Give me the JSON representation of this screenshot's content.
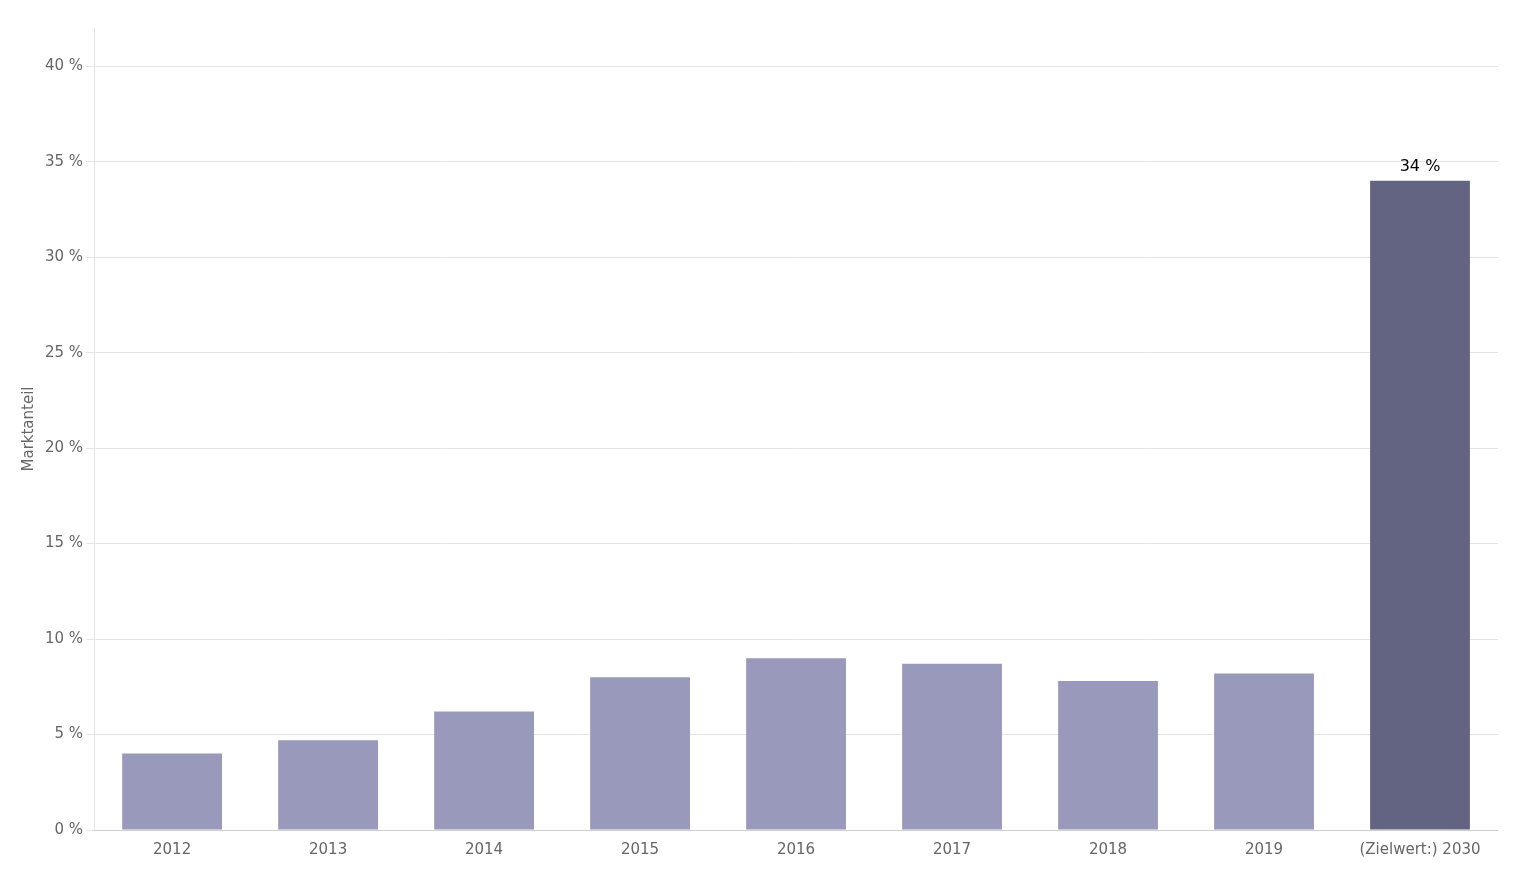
{
  "chart_data": {
    "type": "bar",
    "categories": [
      "2012",
      "2013",
      "2014",
      "2015",
      "2016",
      "2017",
      "2018",
      "2019",
      "(Zielwert:) 2030"
    ],
    "values": [
      4.0,
      4.7,
      6.2,
      8.0,
      9.0,
      8.7,
      7.8,
      8.2,
      34.0
    ],
    "colors": [
      "#9999bb",
      "#9999bb",
      "#9999bb",
      "#9999bb",
      "#9999bb",
      "#9999bb",
      "#9999bb",
      "#9999bb",
      "#636382"
    ],
    "ylabel": "Marktanteil",
    "ylim": [
      0,
      42
    ],
    "yticks": [
      {
        "value": 0,
        "label": "0 %"
      },
      {
        "value": 5,
        "label": "5 %"
      },
      {
        "value": 10,
        "label": "10 %"
      },
      {
        "value": 15,
        "label": "15 %"
      },
      {
        "value": 20,
        "label": "20 %"
      },
      {
        "value": 25,
        "label": "25 %"
      },
      {
        "value": 30,
        "label": "30 %"
      },
      {
        "value": 35,
        "label": "35 %"
      },
      {
        "value": 40,
        "label": "40 %"
      }
    ],
    "annotations": [
      {
        "text": "34 %",
        "x": "(Zielwert:) 2030",
        "y": 34.0
      }
    ],
    "grid": true
  }
}
